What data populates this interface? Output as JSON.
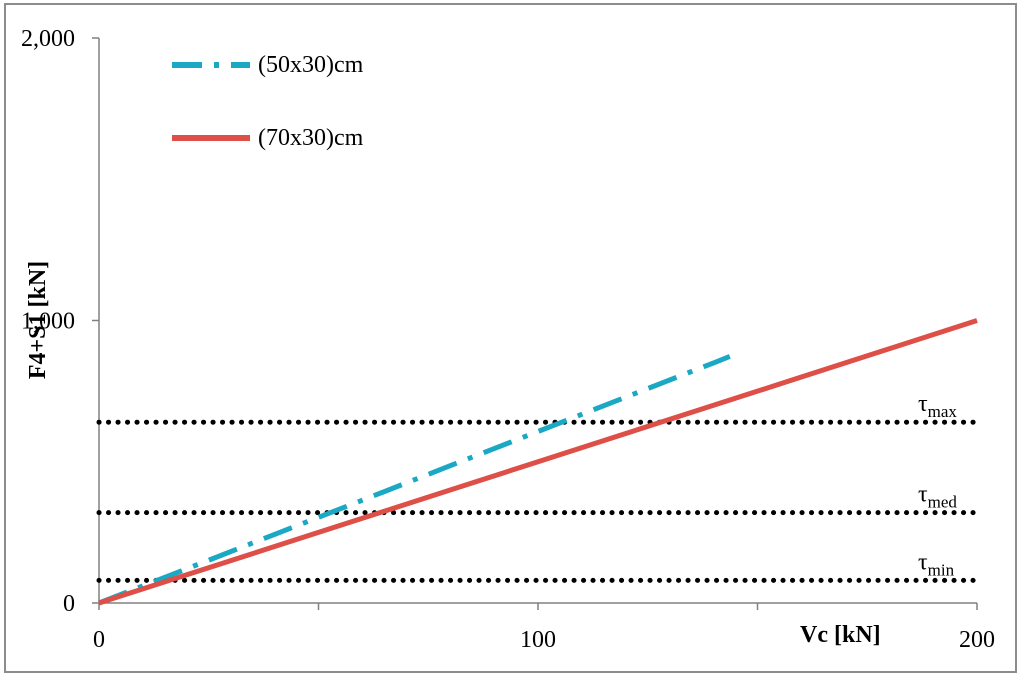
{
  "chart_data": {
    "type": "line",
    "title": "",
    "xlabel": "Vc [kN]",
    "ylabel": "F4+S1 [kN]",
    "xlim": [
      0,
      200
    ],
    "ylim": [
      0,
      2000
    ],
    "x_ticks": [
      0,
      100,
      200
    ],
    "x_tick_labels": [
      "0",
      "100",
      "200"
    ],
    "y_ticks": [
      0,
      1000,
      2000
    ],
    "y_tick_labels": [
      "0",
      "1,000",
      "2,000"
    ],
    "x_minor_ticks": [
      50,
      150
    ],
    "grid": false,
    "legend_position": "top-left",
    "series": [
      {
        "name": "(50x30)cm",
        "color": "#1ba8c4",
        "style": "dash-dot",
        "x": [
          0,
          20,
          40,
          60,
          80,
          100,
          120,
          140,
          143.7
        ],
        "y": [
          0,
          121,
          243,
          364,
          486,
          607,
          729,
          850,
          873
        ]
      },
      {
        "name": "(70x30)cm",
        "color": "#dd4f47",
        "style": "solid",
        "x": [
          0,
          20,
          40,
          60,
          80,
          100,
          120,
          140,
          160,
          180,
          200
        ],
        "y": [
          0,
          100,
          200,
          300,
          400,
          500,
          600,
          700,
          800,
          900,
          1000
        ]
      }
    ],
    "threshold_lines": [
      {
        "label": "τ",
        "subscript": "max",
        "y": 640
      },
      {
        "label": "τ",
        "subscript": "med",
        "y": 320
      },
      {
        "label": "τ",
        "subscript": "min",
        "y": 80
      }
    ]
  }
}
